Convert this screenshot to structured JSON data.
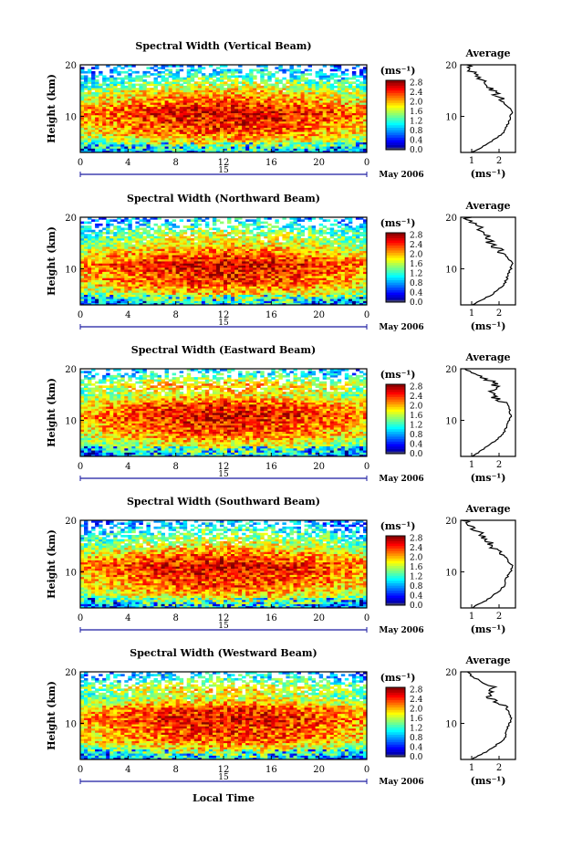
{
  "figure": {
    "time_axis_label": "Local Time",
    "date_label": "May 2006",
    "day_label": "15"
  },
  "chart_data": [
    {
      "type": "heatmap",
      "title": "Spectral Width (Vertical Beam)",
      "ylabel": "Height (km)",
      "xlim": [
        0,
        24
      ],
      "ylim": [
        3,
        20
      ],
      "x_ticks": [
        "0",
        "4",
        "8",
        "12",
        "16",
        "20",
        "0"
      ],
      "y_ticks": [
        "10",
        "20"
      ],
      "colorbar": {
        "unit": "(ms⁻¹)",
        "range": [
          0,
          2.9
        ],
        "ticks": [
          "0.0",
          "0.4",
          "0.8",
          "1.2",
          "1.6",
          "2.0",
          "2.4",
          "2.8"
        ]
      },
      "profile": {
        "title": "Average",
        "xlabel": "(ms⁻¹)",
        "x_ticks": [
          "1",
          "2"
        ],
        "height_km": [
          3,
          5,
          7,
          9,
          11,
          13,
          15,
          17,
          19,
          20
        ],
        "width_ms": [
          1.0,
          1.7,
          2.2,
          2.35,
          2.5,
          2.1,
          1.8,
          1.35,
          0.9,
          0.8
        ]
      }
    },
    {
      "type": "heatmap",
      "title": "Spectral Width (Northward Beam)",
      "ylabel": "Height (km)",
      "xlim": [
        0,
        24
      ],
      "ylim": [
        3,
        20
      ],
      "x_ticks": [
        "0",
        "4",
        "8",
        "12",
        "16",
        "20",
        "0"
      ],
      "y_ticks": [
        "10",
        "20"
      ],
      "colorbar": {
        "unit": "(ms⁻¹)",
        "range": [
          0,
          2.9
        ],
        "ticks": [
          "0.0",
          "0.4",
          "0.8",
          "1.2",
          "1.6",
          "2.0",
          "2.4",
          "2.8"
        ]
      },
      "profile": {
        "title": "Average",
        "xlabel": "(ms⁻¹)",
        "x_ticks": [
          "1",
          "2"
        ],
        "height_km": [
          3,
          5,
          7,
          9,
          11,
          13,
          15,
          17,
          19,
          20
        ],
        "width_ms": [
          1.0,
          1.75,
          2.2,
          2.35,
          2.5,
          2.15,
          1.7,
          1.5,
          1.0,
          0.85
        ]
      }
    },
    {
      "type": "heatmap",
      "title": "Spectral Width (Eastward Beam)",
      "ylabel": "Height (km)",
      "xlim": [
        0,
        24
      ],
      "ylim": [
        3,
        20
      ],
      "x_ticks": [
        "0",
        "4",
        "8",
        "12",
        "16",
        "20",
        "0"
      ],
      "y_ticks": [
        "10",
        "20"
      ],
      "colorbar": {
        "unit": "(ms⁻¹)",
        "range": [
          0,
          2.9
        ],
        "ticks": [
          "0.0",
          "0.4",
          "0.8",
          "1.2",
          "1.6",
          "2.0",
          "2.4",
          "2.8"
        ]
      },
      "profile": {
        "title": "Average",
        "xlabel": "(ms⁻¹)",
        "x_ticks": [
          "1",
          "2"
        ],
        "height_km": [
          3,
          5,
          7,
          9,
          11,
          13,
          15,
          17,
          19,
          20
        ],
        "width_ms": [
          1.0,
          1.6,
          2.1,
          2.3,
          2.45,
          2.3,
          1.7,
          1.9,
          1.1,
          0.9
        ]
      }
    },
    {
      "type": "heatmap",
      "title": "Spectral Width (Southward Beam)",
      "ylabel": "Height (km)",
      "xlim": [
        0,
        24
      ],
      "ylim": [
        3,
        20
      ],
      "x_ticks": [
        "0",
        "4",
        "8",
        "12",
        "16",
        "20",
        "0"
      ],
      "y_ticks": [
        "10",
        "20"
      ],
      "colorbar": {
        "unit": "(ms⁻¹)",
        "range": [
          0,
          2.9
        ],
        "ticks": [
          "0.0",
          "0.4",
          "0.8",
          "1.2",
          "1.6",
          "2.0",
          "2.4",
          "2.8"
        ]
      },
      "profile": {
        "title": "Average",
        "xlabel": "(ms⁻¹)",
        "x_ticks": [
          "1",
          "2"
        ],
        "height_km": [
          3,
          5,
          7,
          9,
          11,
          13,
          15,
          17,
          19,
          20
        ],
        "width_ms": [
          1.0,
          1.7,
          2.15,
          2.3,
          2.5,
          2.2,
          1.75,
          1.4,
          0.95,
          0.8
        ]
      }
    },
    {
      "type": "heatmap",
      "title": "Spectral Width (Westward Beam)",
      "ylabel": "Height (km)",
      "xlim": [
        0,
        24
      ],
      "ylim": [
        3,
        20
      ],
      "x_ticks": [
        "0",
        "4",
        "8",
        "12",
        "16",
        "20",
        "0"
      ],
      "y_ticks": [
        "10",
        "20"
      ],
      "colorbar": {
        "unit": "(ms⁻¹)",
        "range": [
          0,
          2.9
        ],
        "ticks": [
          "0.0",
          "0.4",
          "0.8",
          "1.2",
          "1.6",
          "2.0",
          "2.4",
          "2.8"
        ]
      },
      "profile": {
        "title": "Average",
        "xlabel": "(ms⁻¹)",
        "x_ticks": [
          "1",
          "2"
        ],
        "height_km": [
          3,
          5,
          7,
          9,
          11,
          13,
          15,
          17,
          19,
          20
        ],
        "width_ms": [
          1.0,
          1.7,
          2.2,
          2.3,
          2.45,
          2.25,
          1.6,
          1.75,
          1.05,
          0.85
        ]
      }
    }
  ]
}
